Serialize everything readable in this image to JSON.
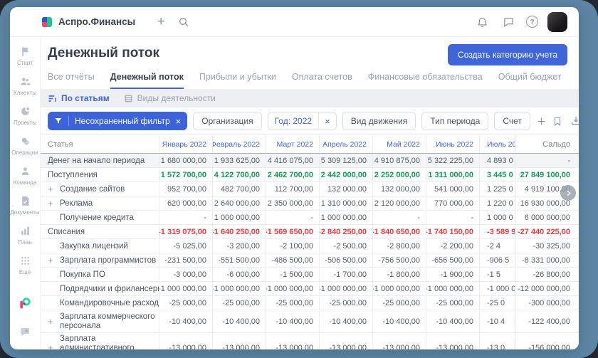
{
  "brand": {
    "name": "Аспро.Финансы"
  },
  "topbar": {
    "plus_glyph": "+",
    "help_glyph": "?",
    "icons": [
      "plus-icon",
      "search-icon",
      "bell-icon",
      "chat-icon",
      "help-icon",
      "user-avatar"
    ]
  },
  "sidebar": {
    "items": [
      {
        "label": "Старт",
        "icon": "start-icon"
      },
      {
        "label": "Клиенты",
        "icon": "clients-icon"
      },
      {
        "label": "Проекты",
        "icon": "projects-icon"
      },
      {
        "label": "Операции",
        "icon": "operations-icon"
      },
      {
        "label": "Команда",
        "icon": "team-icon"
      },
      {
        "label": "Документы",
        "icon": "documents-icon"
      },
      {
        "label": "План",
        "icon": "plan-icon"
      },
      {
        "label": "Ещё",
        "icon": "more-icon"
      }
    ],
    "footer_icons": [
      "aspro-color-logo",
      "chat-bubble-icon"
    ]
  },
  "page": {
    "title": "Денежный поток",
    "create_button": "Создать категорию учета",
    "tabs": [
      {
        "label": "Все отчёты",
        "active": false
      },
      {
        "label": "Денежный поток",
        "active": true
      },
      {
        "label": "Прибыли и убытки",
        "active": false
      },
      {
        "label": "Оплата счетов",
        "active": false
      },
      {
        "label": "Финансовые обязательства",
        "active": false
      },
      {
        "label": "Общий бюджет",
        "active": false
      }
    ],
    "subtabs": [
      {
        "label": "По статьям",
        "icon": "articles-icon",
        "active": true
      },
      {
        "label": "Виды деятельности",
        "icon": "activities-icon",
        "active": false
      }
    ]
  },
  "filters": {
    "saved_filter": "Несохраненный фильтр",
    "close_glyph": "×",
    "chips": [
      {
        "label": "Организация",
        "type": "plain"
      },
      {
        "label": "Год: 2022",
        "type": "year"
      },
      {
        "label": "Вид движения",
        "type": "plain"
      },
      {
        "label": "Тип периода",
        "type": "plain"
      },
      {
        "label": "Счет",
        "type": "plain"
      }
    ],
    "action_icons": [
      "add-filter-icon",
      "bookmark-icon"
    ],
    "right_icons": [
      "download-icon",
      "gear-icon"
    ]
  },
  "colors": {
    "accent_blue": "#3f65d9",
    "income_green": "#139b57",
    "expense_red": "#f2383e",
    "frame_blue": "#5c85a4"
  },
  "table": {
    "article_header": "Статья",
    "saldo_header": "Сальдо",
    "month_headers": [
      "Январь 2022",
      "Февраль 2022",
      "Март 2022",
      "Апрель 2022",
      "Май 2022",
      "Июнь 2022"
    ],
    "july_header_clipped": "Июль 20",
    "rows": [
      {
        "label": "Денег на начало периода",
        "type": "opening",
        "child": false,
        "plus": false,
        "values": [
          "1 680 000,00",
          "1 933 625,00",
          "4 416 075,00",
          "5 309 125,00",
          "4 910 875,00",
          "5 322 225,00"
        ],
        "july": "4 893 0",
        "saldo": "-"
      },
      {
        "label": "Поступления",
        "type": "income",
        "child": false,
        "plus": false,
        "values": [
          "1 572 700,00",
          "4 122 700,00",
          "2 462 700,00",
          "2 442 000,00",
          "2 252 000,00",
          "1 311 000,00"
        ],
        "july": "3 445 0",
        "saldo": "27 849 100,00"
      },
      {
        "label": "Создание сайтов",
        "type": "normal",
        "child": true,
        "plus": true,
        "values": [
          "952 700,00",
          "482 700,00",
          "112 700,00",
          "132 000,00",
          "132 000,00",
          "541 000,00"
        ],
        "july": "1 225 0",
        "saldo": "4 919 100,00"
      },
      {
        "label": "Реклама",
        "type": "normal",
        "child": true,
        "plus": true,
        "values": [
          "620 000,00",
          "2 640 000,00",
          "2 350 000,00",
          "1 310 000,00",
          "2 120 000,00",
          "770 000,00"
        ],
        "july": "1 220 0",
        "saldo": "16 930 000,00"
      },
      {
        "label": "Получение кредита",
        "type": "normal",
        "child": true,
        "plus": false,
        "values": [
          "-",
          "1 000 000,00",
          "-",
          "1 000 000,00",
          "-",
          "-"
        ],
        "july": "1 000 0",
        "saldo": "6 000 000,00"
      },
      {
        "label": "Списания",
        "type": "expense",
        "child": false,
        "plus": false,
        "values": [
          "-1 319 075,00",
          "-1 640 250,00",
          "-1 569 650,00",
          "-2 840 250,00",
          "-1 840 650,00",
          "-1 740 150,00"
        ],
        "july": "-3 589 9",
        "saldo": "-27 440 225,00"
      },
      {
        "label": "Закупка лицензий",
        "type": "normal",
        "child": true,
        "plus": false,
        "values": [
          "-5 025,00",
          "-3 200,00",
          "-2 100,00",
          "-2 500,00",
          "-2 800,00",
          "-2 200,00"
        ],
        "july": "-2 4",
        "saldo": "-30 325,00"
      },
      {
        "label": "Зарплата программистов",
        "type": "normal",
        "child": true,
        "plus": true,
        "values": [
          "-231 500,00",
          "-551 500,00",
          "-486 500,00",
          "-506 500,00",
          "-756 500,00",
          "-656 500,00"
        ],
        "july": "-906 5",
        "saldo": "-8 331 000,00"
      },
      {
        "label": "Покупка ПО",
        "type": "normal",
        "child": true,
        "plus": false,
        "values": [
          "-3 000,00",
          "-6 000,00",
          "-1 500,00",
          "-1 700,00",
          "-1 800,00",
          "-1 900,00"
        ],
        "july": "-1 5",
        "saldo": "-26 800,00"
      },
      {
        "label": "Подрядчики и фрилансеры",
        "type": "normal",
        "child": true,
        "plus": false,
        "values": [
          "-1 000 000,00",
          "-1 000 000,00",
          "-1 000 000,00",
          "-1 000 000,00",
          "-1 000 000,00",
          "-1 000 000,00"
        ],
        "july": "-1 000 0",
        "saldo": "-12 000 000,00"
      },
      {
        "label": "Командировочные расходы",
        "type": "normal",
        "child": true,
        "plus": false,
        "values": [
          "-25 000,00",
          "-25 000,00",
          "-25 000,00",
          "-25 000,00",
          "-25 000,00",
          "-25 000,00"
        ],
        "july": "-25 0",
        "saldo": "-300 000,00"
      },
      {
        "label": "Зарплата коммерческого персонала",
        "type": "normal",
        "child": true,
        "plus": true,
        "wrap": true,
        "values": [
          "-10 400,00",
          "-10 400,00",
          "-10 400,00",
          "-10 400,00",
          "-10 400,00",
          "-10 400,00"
        ],
        "july": "-10 4",
        "saldo": "-122 400,00"
      },
      {
        "label": "Зарплата административного персонала",
        "type": "normal",
        "child": true,
        "plus": true,
        "wrap": true,
        "values": [
          "-13 000,00",
          "-13 000,00",
          "-13 000,00",
          "-13 000,00",
          "-13 000,00",
          "-13 000,00"
        ],
        "july": "-13 0",
        "saldo": "-156 000,00"
      }
    ]
  }
}
